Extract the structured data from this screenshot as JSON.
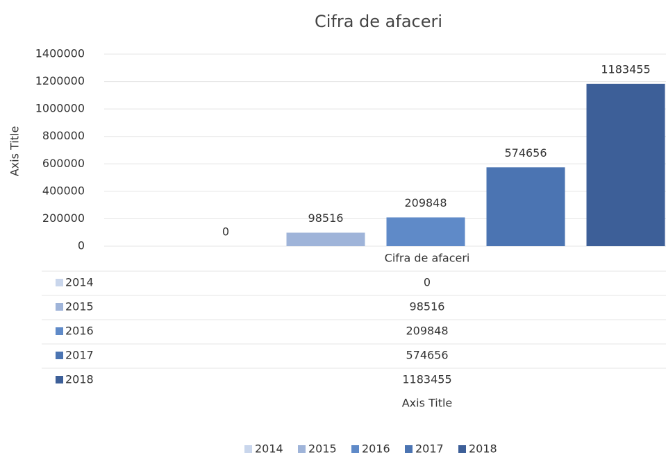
{
  "chart_data": {
    "type": "bar",
    "title": "Cifra de afaceri",
    "y_axis_title": "Axis Title",
    "x_axis_title": "Axis Title",
    "categories": [
      "Cifra de afaceri"
    ],
    "series": [
      {
        "name": "2014",
        "color": "#c9d6ec",
        "values": [
          0
        ]
      },
      {
        "name": "2015",
        "color": "#9fb4d9",
        "values": [
          98516
        ]
      },
      {
        "name": "2016",
        "color": "#5f8ac8",
        "values": [
          209848
        ]
      },
      {
        "name": "2017",
        "color": "#4b74b2",
        "values": [
          574656
        ]
      },
      {
        "name": "2018",
        "color": "#3d5f98",
        "values": [
          1183455
        ]
      }
    ],
    "ylim": [
      0,
      1400000
    ],
    "yticks": [
      0,
      200000,
      400000,
      600000,
      800000,
      1000000,
      1200000,
      1400000
    ],
    "grid": true,
    "legend": "bottom",
    "data_table": true
  }
}
